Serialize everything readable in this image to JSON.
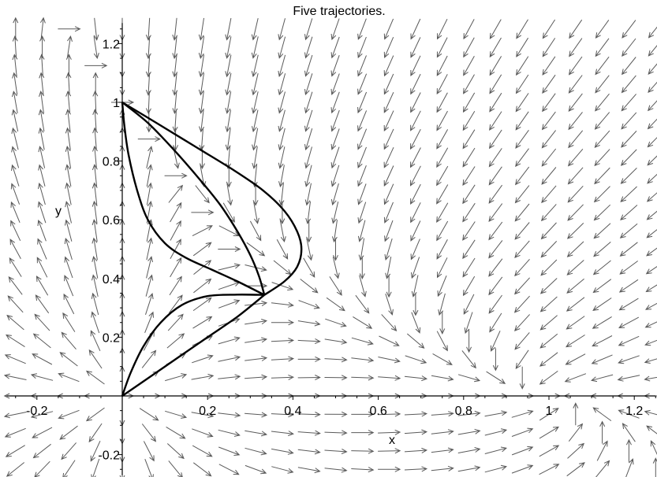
{
  "chart_data": {
    "type": "line",
    "title": "Five trajectories.",
    "xlabel": "x",
    "ylabel": "y",
    "xlim": [
      -0.27,
      1.25
    ],
    "ylim": [
      -0.27,
      1.27
    ],
    "x_ticks": [
      {
        "value": -0.2,
        "label": "-0.2"
      },
      {
        "value": 0.2,
        "label": "0.2"
      },
      {
        "value": 0.4,
        "label": "0.4"
      },
      {
        "value": 0.6,
        "label": "0.6"
      },
      {
        "value": 0.8,
        "label": "0.8"
      },
      {
        "value": 1.0,
        "label": "1"
      },
      {
        "value": 1.2,
        "label": "1.2"
      }
    ],
    "y_ticks": [
      {
        "value": -0.2,
        "label": "-0.2"
      },
      {
        "value": 0.2,
        "label": "0.2"
      },
      {
        "value": 0.4,
        "label": "0.4"
      },
      {
        "value": 0.6,
        "label": "0.6"
      },
      {
        "value": 0.8,
        "label": "0.8"
      },
      {
        "value": 1.0,
        "label": "1"
      },
      {
        "value": 1.2,
        "label": "1.2"
      }
    ],
    "direction_field": {
      "x_range": [
        -0.25,
        1.25
      ],
      "y_range": [
        -0.25,
        1.25
      ],
      "grid_count": 25,
      "arrow_color": "#5a5a5a"
    },
    "series": [
      {
        "points": [
          [
            0.0,
            1.0
          ],
          [
            0.005,
            0.92
          ],
          [
            0.015,
            0.82
          ],
          [
            0.035,
            0.7
          ],
          [
            0.06,
            0.6
          ],
          [
            0.1,
            0.52
          ],
          [
            0.15,
            0.47
          ],
          [
            0.21,
            0.43
          ],
          [
            0.27,
            0.39
          ],
          [
            0.333,
            0.344
          ]
        ]
      },
      {
        "points": [
          [
            0.0,
            1.0
          ],
          [
            0.06,
            0.93
          ],
          [
            0.12,
            0.84
          ],
          [
            0.18,
            0.74
          ],
          [
            0.23,
            0.65
          ],
          [
            0.27,
            0.56
          ],
          [
            0.3,
            0.48
          ],
          [
            0.32,
            0.41
          ],
          [
            0.333,
            0.344
          ]
        ]
      },
      {
        "points": [
          [
            0.0,
            1.0
          ],
          [
            0.08,
            0.93
          ],
          [
            0.17,
            0.85
          ],
          [
            0.26,
            0.77
          ],
          [
            0.33,
            0.7
          ],
          [
            0.38,
            0.63
          ],
          [
            0.41,
            0.56
          ],
          [
            0.42,
            0.5
          ],
          [
            0.41,
            0.44
          ],
          [
            0.38,
            0.39
          ],
          [
            0.333,
            0.344
          ]
        ]
      },
      {
        "points": [
          [
            0.0,
            0.0
          ],
          [
            0.02,
            0.08
          ],
          [
            0.05,
            0.17
          ],
          [
            0.09,
            0.25
          ],
          [
            0.14,
            0.31
          ],
          [
            0.2,
            0.34
          ],
          [
            0.27,
            0.345
          ],
          [
            0.333,
            0.344
          ]
        ]
      },
      {
        "points": [
          [
            0.0,
            0.0
          ],
          [
            0.06,
            0.06
          ],
          [
            0.13,
            0.13
          ],
          [
            0.2,
            0.2
          ],
          [
            0.27,
            0.27
          ],
          [
            0.333,
            0.344
          ]
        ]
      }
    ],
    "grid": false,
    "legend": "none"
  }
}
